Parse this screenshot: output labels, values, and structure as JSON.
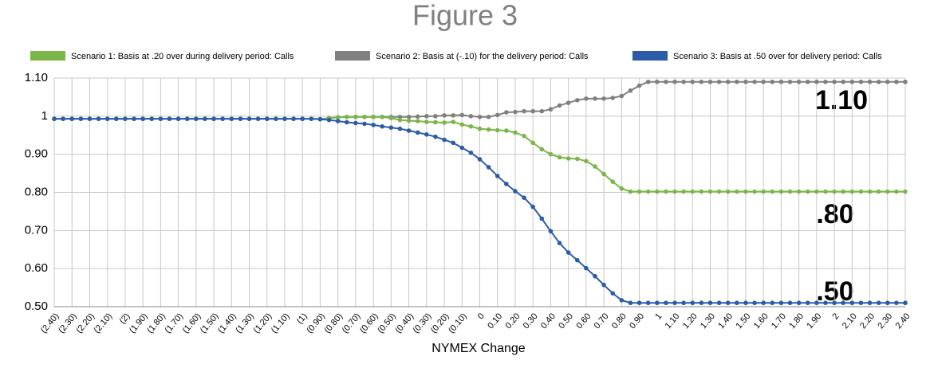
{
  "chart_data": {
    "type": "line",
    "title": "Figure 3",
    "xlabel": "NYMEX Change",
    "annotations": [
      "1.10",
      ".80",
      ".50"
    ],
    "categories": [
      "(2.40)",
      null,
      "(2.30)",
      null,
      "(2.20)",
      null,
      "(2.10)",
      null,
      "(2)",
      null,
      "(1.90)",
      null,
      "(1.80)",
      null,
      "(1.70)",
      null,
      "(1.60)",
      null,
      "(1.50)",
      null,
      "(1.40)",
      null,
      "(1.30)",
      null,
      "(1.20)",
      null,
      "(1.10)",
      null,
      "(1)",
      null,
      "(0.90)",
      null,
      "(0.80)",
      null,
      "(0.70)",
      null,
      "(0.60)",
      null,
      "(0.50)",
      null,
      "(0.40)",
      null,
      "(0.30)",
      null,
      "(0.20)",
      null,
      "(0.10)",
      null,
      "0",
      null,
      "0.10",
      null,
      "0.20",
      null,
      "0.30",
      null,
      "0.40",
      null,
      "0.50",
      null,
      "0.60",
      null,
      "0.70",
      null,
      "0.80",
      null,
      "0.90",
      null,
      "1",
      null,
      "1.10",
      null,
      "1.20",
      null,
      "1.30",
      null,
      "1.40",
      null,
      "1.50",
      null,
      "1.60",
      null,
      "1.70",
      null,
      "1.80",
      null,
      "1.90",
      null,
      "2",
      null,
      "2.10",
      null,
      "2.20",
      null,
      "2.30",
      null,
      "2.40"
    ],
    "series": [
      {
        "name": "Scenario 2: Basis at (-.10) for the delivery period: Calls",
        "color": "#808080",
        "values": [
          0.993,
          0.993,
          0.993,
          0.993,
          0.993,
          0.993,
          0.993,
          0.993,
          0.993,
          0.993,
          0.993,
          0.993,
          0.993,
          0.993,
          0.993,
          0.993,
          0.993,
          0.993,
          0.993,
          0.993,
          0.993,
          0.993,
          0.993,
          0.993,
          0.993,
          0.993,
          0.993,
          0.993,
          0.993,
          0.993,
          0.992,
          0.995,
          0.997,
          0.998,
          0.998,
          0.998,
          0.998,
          0.998,
          0.998,
          0.998,
          0.998,
          0.999,
          1,
          1,
          1.002,
          1.002,
          1.003,
          1,
          0.998,
          0.998,
          1.003,
          1.01,
          1.011,
          1.013,
          1.013,
          1.013,
          1.018,
          1.028,
          1.035,
          1.042,
          1.046,
          1.046,
          1.046,
          1.048,
          1.053,
          1.067,
          1.08,
          1.09,
          1.09,
          1.09,
          1.09,
          1.09,
          1.09,
          1.09,
          1.09,
          1.09,
          1.09,
          1.09,
          1.09,
          1.09,
          1.09,
          1.09,
          1.09,
          1.09,
          1.09,
          1.09,
          1.09,
          1.09,
          1.09,
          1.09,
          1.09,
          1.09,
          1.09,
          1.09,
          1.09,
          1.09,
          1.09
        ]
      },
      {
        "name": "Scenario 1: Basis at .20 over during delivery period: Calls",
        "color": "#7ab648",
        "values": [
          0.993,
          0.993,
          0.993,
          0.993,
          0.993,
          0.993,
          0.993,
          0.993,
          0.993,
          0.993,
          0.993,
          0.993,
          0.993,
          0.993,
          0.993,
          0.993,
          0.993,
          0.993,
          0.993,
          0.993,
          0.993,
          0.993,
          0.993,
          0.993,
          0.993,
          0.993,
          0.993,
          0.993,
          0.993,
          0.993,
          0.992,
          0.995,
          0.997,
          0.998,
          0.998,
          0.998,
          0.998,
          0.998,
          0.995,
          0.99,
          0.988,
          0.987,
          0.985,
          0.984,
          0.983,
          0.985,
          0.978,
          0.973,
          0.967,
          0.965,
          0.963,
          0.962,
          0.957,
          0.948,
          0.93,
          0.913,
          0.9,
          0.892,
          0.889,
          0.888,
          0.882,
          0.868,
          0.848,
          0.828,
          0.81,
          0.802,
          0.802,
          0.802,
          0.802,
          0.802,
          0.802,
          0.802,
          0.802,
          0.802,
          0.802,
          0.802,
          0.802,
          0.802,
          0.802,
          0.802,
          0.802,
          0.802,
          0.802,
          0.802,
          0.802,
          0.802,
          0.802,
          0.802,
          0.802,
          0.802,
          0.802,
          0.802,
          0.802,
          0.802,
          0.802,
          0.802,
          0.802
        ]
      },
      {
        "name": "Scenario 3: Basis at .50 over for delivery period: Calls",
        "color": "#2c5ca8",
        "values": [
          0.993,
          0.993,
          0.993,
          0.993,
          0.993,
          0.993,
          0.993,
          0.993,
          0.993,
          0.993,
          0.993,
          0.993,
          0.993,
          0.993,
          0.993,
          0.993,
          0.993,
          0.993,
          0.993,
          0.993,
          0.993,
          0.993,
          0.993,
          0.993,
          0.993,
          0.993,
          0.993,
          0.993,
          0.993,
          0.993,
          0.992,
          0.99,
          0.987,
          0.984,
          0.982,
          0.98,
          0.977,
          0.973,
          0.97,
          0.967,
          0.962,
          0.957,
          0.952,
          0.946,
          0.938,
          0.93,
          0.917,
          0.904,
          0.887,
          0.866,
          0.843,
          0.822,
          0.803,
          0.786,
          0.762,
          0.731,
          0.698,
          0.667,
          0.642,
          0.622,
          0.601,
          0.58,
          0.557,
          0.535,
          0.517,
          0.51,
          0.51,
          0.51,
          0.51,
          0.51,
          0.51,
          0.51,
          0.51,
          0.51,
          0.51,
          0.51,
          0.51,
          0.51,
          0.51,
          0.51,
          0.51,
          0.51,
          0.51,
          0.51,
          0.51,
          0.51,
          0.51,
          0.51,
          0.51,
          0.51,
          0.51,
          0.51,
          0.51,
          0.51,
          0.51,
          0.51,
          0.51
        ]
      }
    ],
    "legend_order": [
      1,
      0,
      2
    ],
    "ylim": [
      0.5,
      1.1
    ],
    "yticks": [
      {
        "value": 0.5,
        "label": "0.50"
      },
      {
        "value": 0.6,
        "label": "0.60"
      },
      {
        "value": 0.7,
        "label": "0.70"
      },
      {
        "value": 0.8,
        "label": "0.80"
      },
      {
        "value": 0.9,
        "label": "0.90"
      },
      1,
      {
        "value": 1.1,
        "label": "1.10"
      }
    ],
    "grid": true
  }
}
